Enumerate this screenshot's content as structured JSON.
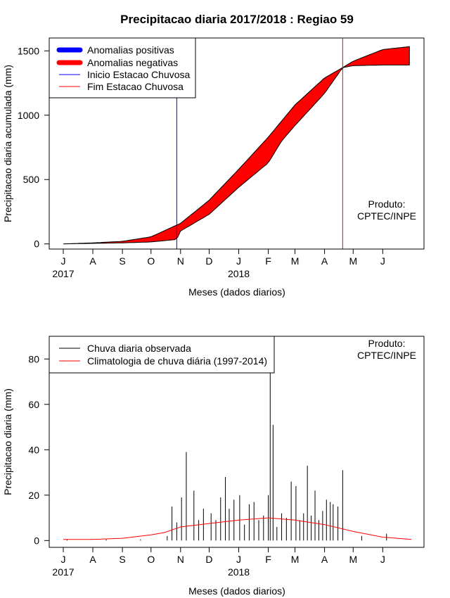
{
  "title": "Precipitacao diaria 2017/2018 : Regiao 59",
  "colors": {
    "anomaly_positive": "#0000ff",
    "anomaly_negative": "#ff0000",
    "onset_line": "#0000ff",
    "end_line": "#ff0000",
    "observed_bars": "#000000",
    "climatology_line": "#ff0000"
  },
  "chart_data": [
    {
      "type": "area",
      "ylabel": "Precipitacao diaria acumulada (mm)",
      "xlabel": "Meses (dados diarios)",
      "x_tick_labels": [
        "J",
        "A",
        "S",
        "O",
        "N",
        "D",
        "J",
        "F",
        "M",
        "A",
        "M",
        "J"
      ],
      "x_year_labels": [
        "2017",
        "2018"
      ],
      "y_ticks": [
        0,
        500,
        1000,
        1500
      ],
      "ylim": [
        -40,
        1600
      ],
      "product_note": [
        "Produto:",
        "CPTEC/INPE"
      ],
      "legend": {
        "position": "top-left",
        "entries": [
          "Anomalias positivas",
          "Anomalias negativas",
          "Inicio Estacao Chuvosa",
          "Fim Estacao Chuvosa"
        ]
      },
      "onset_date": "2017-10-28",
      "end_date": "2018-04-20",
      "series": [
        {
          "name": "Climatology accumulated",
          "x": [
            "2017-07-01",
            "2017-08-01",
            "2017-09-01",
            "2017-10-01",
            "2017-11-01",
            "2017-12-01",
            "2018-01-01",
            "2018-02-01",
            "2018-03-01",
            "2018-04-01",
            "2018-04-20",
            "2018-05-01",
            "2018-06-01",
            "2018-07-01"
          ],
          "values": [
            0,
            8,
            20,
            55,
            160,
            340,
            580,
            830,
            1080,
            1290,
            1370,
            1420,
            1510,
            1535
          ]
        },
        {
          "name": "Observed accumulated",
          "x": [
            "2017-07-01",
            "2017-08-01",
            "2017-09-01",
            "2017-10-01",
            "2017-10-28",
            "2017-11-01",
            "2017-12-01",
            "2018-01-01",
            "2018-02-01",
            "2018-02-15",
            "2018-03-01",
            "2018-04-01",
            "2018-04-20",
            "2018-05-01",
            "2018-06-01",
            "2018-07-01"
          ],
          "values": [
            0,
            4,
            8,
            15,
            35,
            100,
            230,
            440,
            630,
            800,
            920,
            1170,
            1370,
            1385,
            1390,
            1390
          ]
        }
      ]
    },
    {
      "type": "bar",
      "ylabel": "Precipitacao diaria (mm)",
      "xlabel": "Meses (dados diarios)",
      "x_tick_labels": [
        "J",
        "A",
        "S",
        "O",
        "N",
        "D",
        "J",
        "F",
        "M",
        "A",
        "M",
        "J"
      ],
      "x_year_labels": [
        "2017",
        "2018"
      ],
      "y_ticks": [
        0,
        20,
        40,
        60,
        80
      ],
      "ylim": [
        -3,
        90
      ],
      "product_note": [
        "Produto:",
        "CPTEC/INPE"
      ],
      "legend": {
        "position": "top-left",
        "entries": [
          "Chuva diaria observada",
          "Climatologia de chuva diária (1997-2014)"
        ]
      },
      "series": [
        {
          "name": "Chuva diaria observada",
          "x": [
            "2017-07-05",
            "2017-08-15",
            "2017-09-20",
            "2017-10-18",
            "2017-10-23",
            "2017-10-28",
            "2017-11-02",
            "2017-11-07",
            "2017-11-15",
            "2017-11-20",
            "2017-11-25",
            "2017-12-03",
            "2017-12-08",
            "2017-12-13",
            "2017-12-18",
            "2017-12-22",
            "2017-12-27",
            "2018-01-02",
            "2018-01-07",
            "2018-01-12",
            "2018-01-17",
            "2018-01-22",
            "2018-01-27",
            "2018-02-01",
            "2018-02-03",
            "2018-02-06",
            "2018-02-10",
            "2018-02-15",
            "2018-02-20",
            "2018-02-25",
            "2018-03-02",
            "2018-03-06",
            "2018-03-10",
            "2018-03-14",
            "2018-03-18",
            "2018-03-22",
            "2018-03-26",
            "2018-03-30",
            "2018-04-03",
            "2018-04-07",
            "2018-04-10",
            "2018-04-15",
            "2018-04-20",
            "2018-05-10",
            "2018-06-05"
          ],
          "values": [
            0.5,
            0.5,
            0.5,
            2,
            15,
            8,
            19,
            39,
            22,
            9,
            14,
            12,
            9,
            19,
            28,
            14,
            18,
            20,
            7,
            16,
            17,
            9,
            11,
            20,
            76,
            51,
            6,
            12,
            10,
            26,
            24,
            9,
            12,
            33,
            11,
            22,
            9,
            13,
            18,
            17,
            16,
            15,
            31,
            2,
            3
          ]
        },
        {
          "name": "Climatologia de chuva diária (1997-2014)",
          "x": [
            "2017-07-01",
            "2017-08-01",
            "2017-09-01",
            "2017-10-01",
            "2017-10-15",
            "2017-11-01",
            "2017-12-01",
            "2018-01-01",
            "2018-02-01",
            "2018-03-01",
            "2018-04-01",
            "2018-05-01",
            "2018-06-01",
            "2018-07-01"
          ],
          "values": [
            0.5,
            0.5,
            1,
            2.5,
            3.5,
            6,
            7.5,
            9,
            10,
            9,
            7,
            4,
            1.5,
            0.5
          ]
        }
      ]
    }
  ]
}
